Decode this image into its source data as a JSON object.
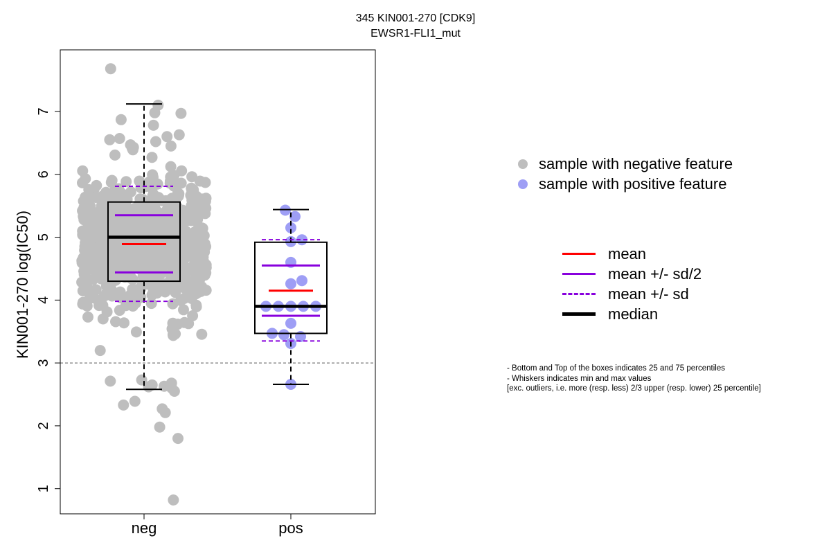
{
  "title": {
    "line1": "345 KIN001-270 [CDK9]",
    "line2": "EWSR1-FLI1_mut"
  },
  "legend_points": [
    {
      "label": "sample with negative feature",
      "color": "#bebebe"
    },
    {
      "label": "sample with positive feature",
      "color": "#9e9ef5"
    }
  ],
  "legend_lines": [
    {
      "label": "mean",
      "color": "#ff0000",
      "style": "solid",
      "weight": "normal"
    },
    {
      "label": "mean +/- sd/2",
      "color": "#8800dd",
      "style": "solid",
      "weight": "normal"
    },
    {
      "label": "mean +/- sd",
      "color": "#8800dd",
      "style": "dashed",
      "weight": "normal"
    },
    {
      "label": "median",
      "color": "#000000",
      "style": "solid",
      "weight": "bold"
    }
  ],
  "notes": [
    "- Bottom and Top of the boxes indicates 25 and 75 percentiles",
    "- Whiskers indicates min and max values",
    "[exc. outliers, i.e. more (resp. less) 2/3 upper (resp. lower) 25 percentile]"
  ],
  "chart_data": {
    "type": "box",
    "ylabel": "KIN001-270 log(IC50)",
    "ylim": [
      0.6,
      7.98
    ],
    "yticks": [
      1,
      2,
      3,
      4,
      5,
      6,
      7
    ],
    "reference_line": 3,
    "categories": [
      "neg",
      "pos"
    ],
    "groups": [
      {
        "name": "neg",
        "box": {
          "q1": 4.3,
          "median": 5.0,
          "q3": 5.56,
          "whisker_low": 2.58,
          "whisker_high": 7.12
        },
        "mean": 4.89,
        "mean_minus_half_sd": 4.44,
        "mean_plus_half_sd": 5.35,
        "mean_minus_sd": 3.98,
        "mean_plus_sd": 5.81,
        "n_points": 800,
        "outliers": [
          7.68,
          0.82
        ],
        "points": [
          7.68,
          7.1,
          6.97,
          6.98,
          6.87,
          6.78,
          6.63,
          6.6,
          6.57,
          6.55,
          6.52,
          6.47,
          6.45,
          6.43,
          2.71,
          2.73,
          2.68,
          2.65,
          2.63,
          2.62,
          2.6,
          2.55,
          2.39,
          2.33,
          2.27,
          2.21,
          1.98,
          1.8,
          0.82
        ]
      },
      {
        "name": "pos",
        "box": {
          "q1": 3.47,
          "median": 3.9,
          "q3": 4.92,
          "whisker_low": 2.66,
          "whisker_high": 5.44
        },
        "mean": 4.15,
        "mean_minus_half_sd": 3.75,
        "mean_plus_half_sd": 4.55,
        "mean_minus_sd": 3.35,
        "mean_plus_sd": 4.96,
        "points": [
          5.43,
          5.33,
          5.15,
          4.96,
          4.93,
          4.6,
          4.31,
          4.26,
          3.9,
          3.9,
          3.9,
          3.9,
          3.9,
          3.63,
          3.47,
          3.45,
          3.42,
          3.31,
          2.66
        ]
      }
    ]
  }
}
